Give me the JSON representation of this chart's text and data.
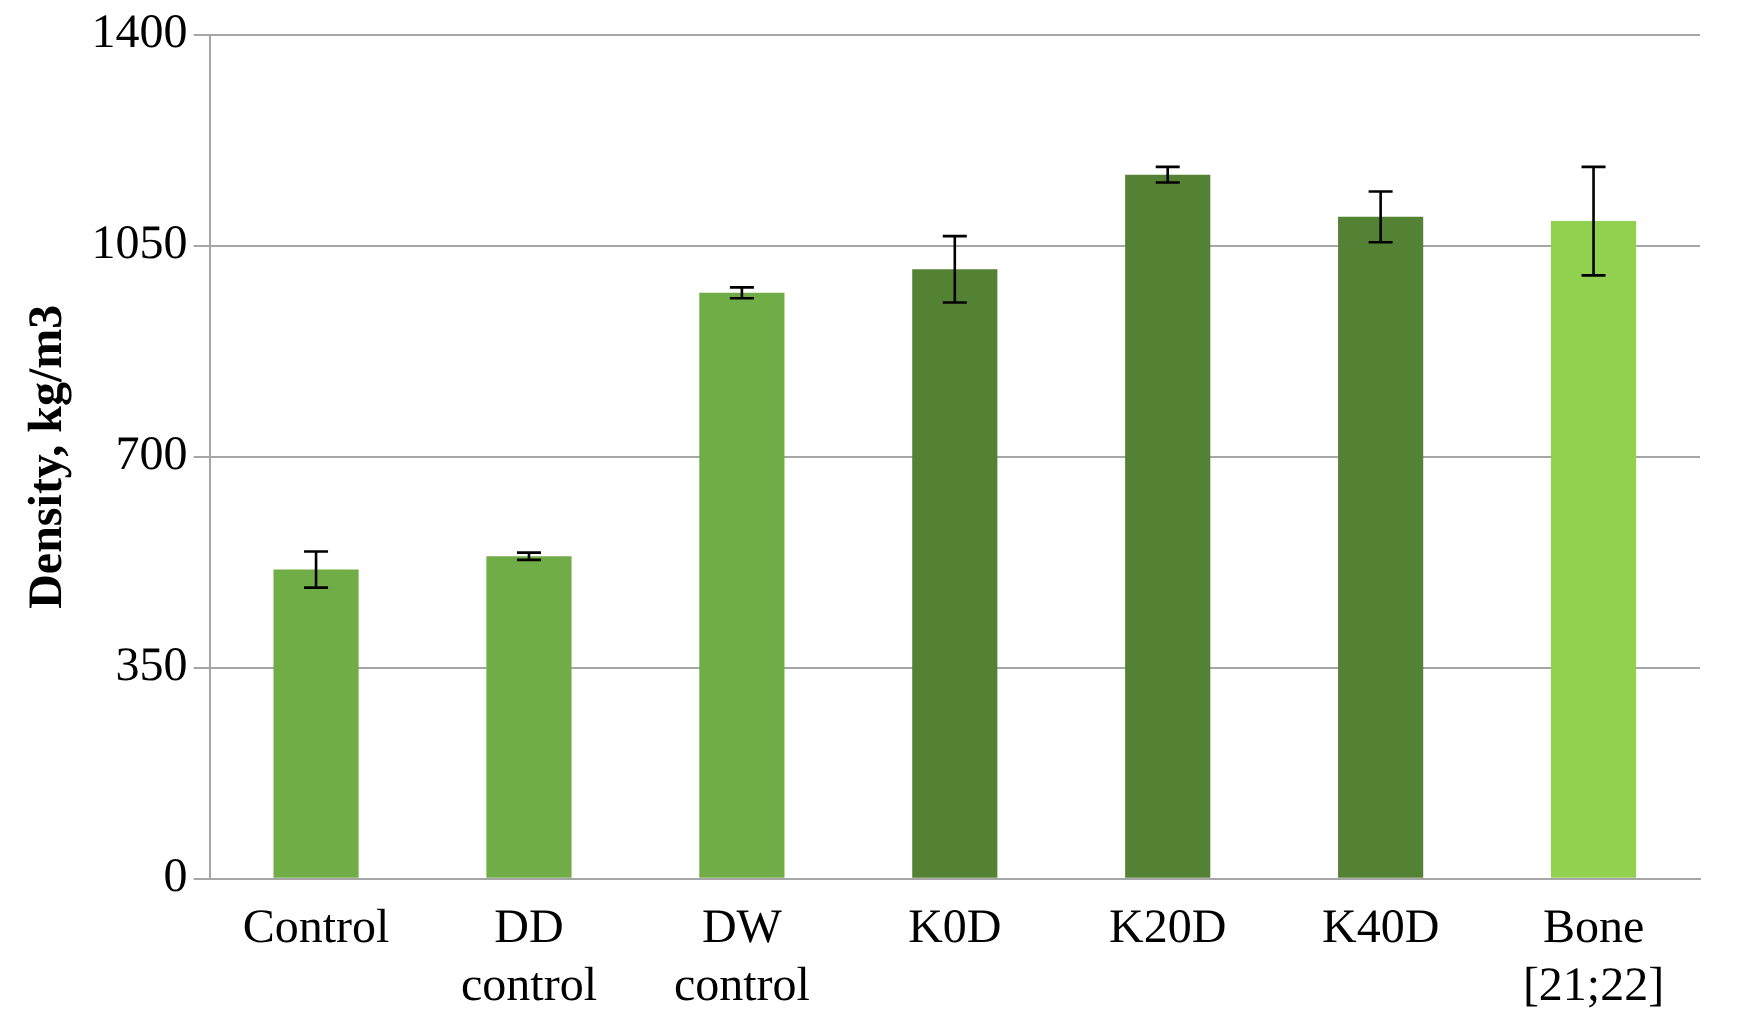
{
  "chart_data": {
    "type": "bar",
    "ylabel": "Density, kg/m3",
    "categories": [
      "Control",
      "DD\ncontrol",
      "DW\ncontrol",
      "K0D",
      "K20D",
      "K40D",
      "Bone\n[21;22]"
    ],
    "values": [
      513,
      535,
      972,
      1011,
      1168,
      1098,
      1091
    ],
    "errors": [
      30,
      6,
      9,
      55,
      13,
      42,
      90
    ],
    "colors": [
      "#70ad47",
      "#70ad47",
      "#70ad47",
      "#548235",
      "#548235",
      "#548235",
      "#92d050"
    ],
    "ylim": [
      0,
      1400
    ],
    "yticks": [
      0,
      350,
      700,
      1050,
      1400
    ],
    "grid": "y",
    "legend": false
  }
}
